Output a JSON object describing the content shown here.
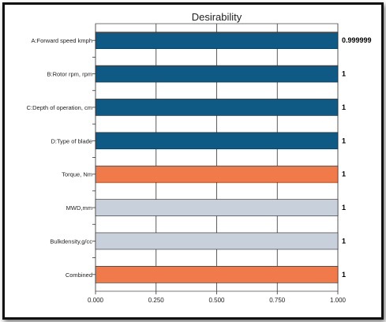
{
  "chart_data": {
    "type": "bar",
    "orientation": "horizontal",
    "title": "Desirability",
    "categories": [
      "A:Forward speed kmph",
      "B:Rotor rpm, rpm",
      "C:Depth of operation, cm",
      "D:Type of blade",
      "Torque, Nm",
      "MWD,mm",
      "Bulkdensity,g/cc",
      "Combined"
    ],
    "values": [
      0.999999,
      1,
      1,
      1,
      1,
      1,
      1,
      1
    ],
    "value_labels": [
      "0.999999",
      "1",
      "1",
      "1",
      "1",
      "1",
      "1",
      "1"
    ],
    "bar_colors": [
      "#0f5a84",
      "#0f5a84",
      "#0f5a84",
      "#0f5a84",
      "#f07a4a",
      "#c8d0dc",
      "#c8d0dc",
      "#f07a4a"
    ],
    "xticks": [
      "0.000",
      "0.250",
      "0.500",
      "0.750",
      "1.000"
    ],
    "xlim": [
      0,
      1
    ],
    "grid": true
  }
}
